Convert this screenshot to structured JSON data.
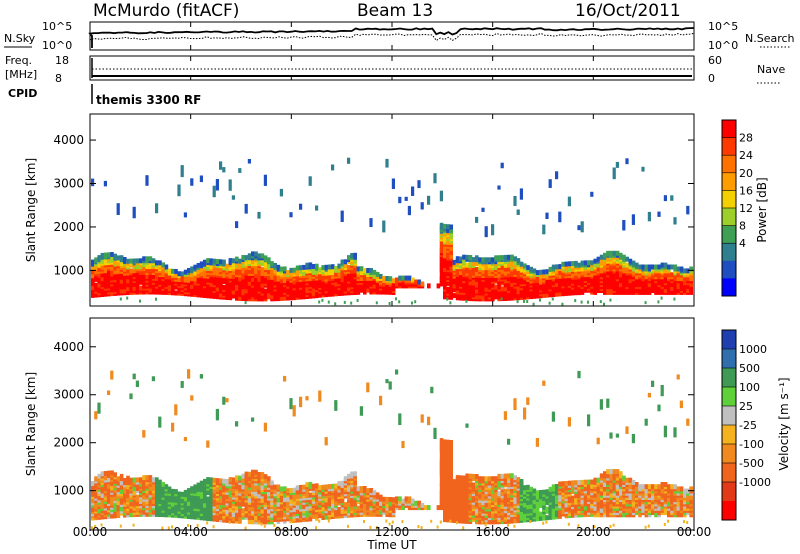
{
  "header": {
    "station": "McMurdo (fitACF)",
    "beam": "Beam 13",
    "date": "16/Oct/2011"
  },
  "panel_noise": {
    "left_label": "N.Sky",
    "right_label": "N.Search",
    "left_ticks": [
      "10^5",
      "10^0"
    ],
    "right_ticks": [
      "10^5",
      "10^0"
    ]
  },
  "panel_freq": {
    "left_label_1": "Freq.",
    "left_label_2": "[MHz]",
    "right_label": "Nave",
    "left_ticks": [
      "18",
      "8"
    ],
    "right_ticks": [
      "60",
      "0"
    ]
  },
  "panel_cpid": {
    "label": "CPID",
    "value": "themis 3300 RF"
  },
  "chart_data": [
    {
      "type": "heatmap",
      "name": "power",
      "ylabel": "Slant Range [km]",
      "ylim": [
        180,
        4600
      ],
      "y_ticks": [
        "4000",
        "3000",
        "2000",
        "1000"
      ],
      "x_ticks": [
        "00:00",
        "04:00",
        "08:00",
        "12:00",
        "16:00",
        "20:00",
        "00:00"
      ],
      "xlim_hours": [
        0,
        24
      ],
      "colorbar_title": "Power [dB]",
      "colorbar_labels": [
        "28",
        "24",
        "20",
        "16",
        "12",
        "8",
        "4"
      ],
      "colorbar_colors": [
        "#ff0000",
        "#ff3a00",
        "#ff7200",
        "#ff9d00",
        "#f5d000",
        "#9ccf2a",
        "#3fa055",
        "#2f7f8f",
        "#1e4ec0",
        "#0000ff"
      ]
    },
    {
      "type": "heatmap",
      "name": "velocity",
      "ylabel": "Slant Range [km]",
      "ylim": [
        180,
        4600
      ],
      "y_ticks": [
        "4000",
        "3000",
        "2000",
        "1000"
      ],
      "x_ticks": [
        "00:00",
        "04:00",
        "08:00",
        "12:00",
        "16:00",
        "20:00",
        "00:00"
      ],
      "xlim_hours": [
        0,
        24
      ],
      "xlabel": "Time UT",
      "colorbar_title": "Velocity [m s⁻¹]",
      "colorbar_labels": [
        "1000",
        "500",
        "100",
        "25",
        "-25",
        "-100",
        "-500",
        "-1000"
      ],
      "colorbar_colors": [
        "#1f3fb0",
        "#2f6fae",
        "#3e9a55",
        "#5fd03a",
        "#c0c0c0",
        "#f3b21e",
        "#f08a1e",
        "#f0641e",
        "#e23a18",
        "#ff0000"
      ]
    }
  ]
}
